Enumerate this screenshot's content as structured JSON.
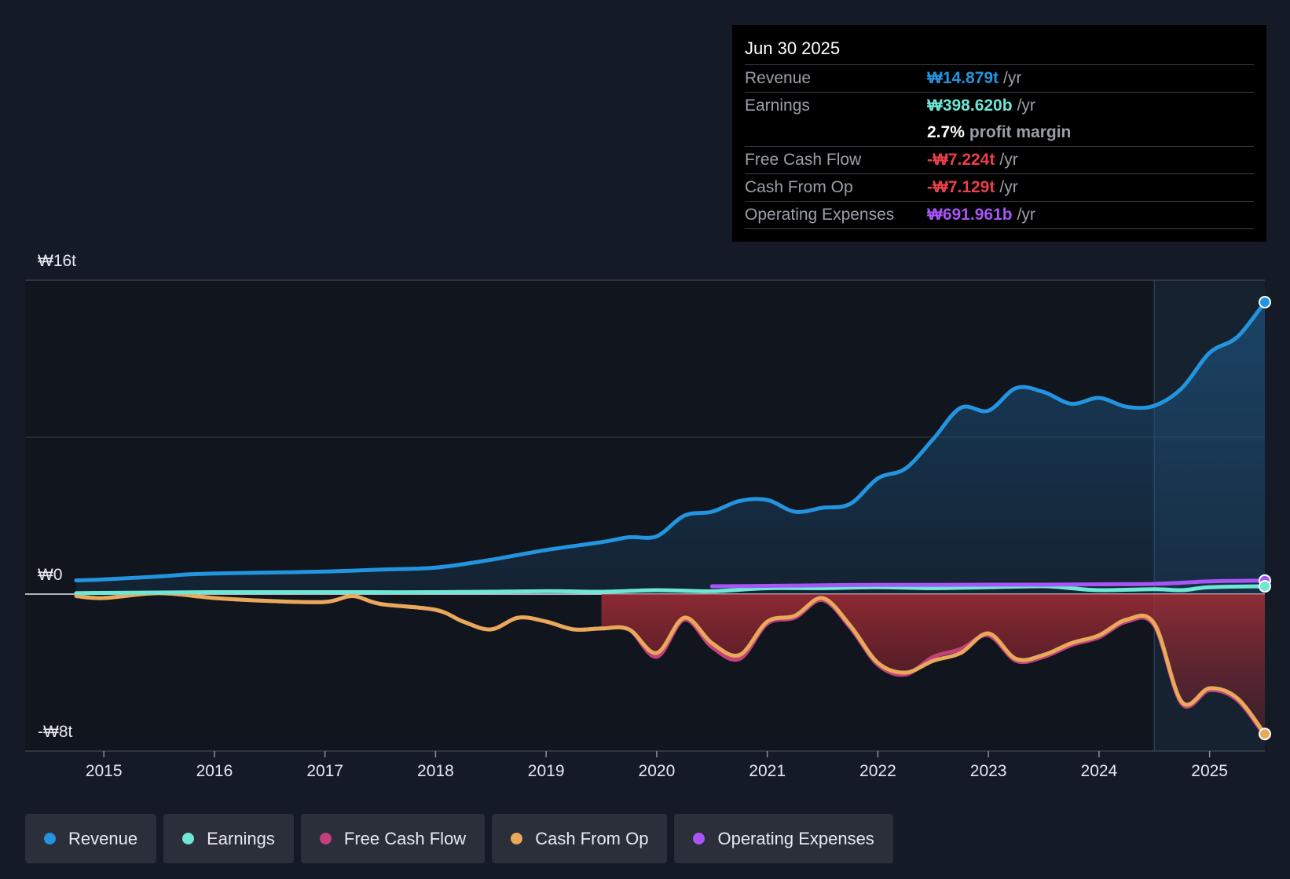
{
  "tooltip": {
    "date": "Jun 30 2025",
    "rows": [
      {
        "label": "Revenue",
        "value": "₩14.879t",
        "unit": "/yr",
        "color": "#2394df"
      },
      {
        "label": "Earnings",
        "value": "₩398.620b",
        "unit": "/yr",
        "color": "#6ee7d6"
      },
      {
        "label": "",
        "value": "2.7%",
        "unit": "profit margin",
        "color": "#ffffff"
      },
      {
        "label": "Free Cash Flow",
        "value": "-₩7.224t",
        "unit": "/yr",
        "color": "#e8404a"
      },
      {
        "label": "Cash From Op",
        "value": "-₩7.129t",
        "unit": "/yr",
        "color": "#e8404a"
      },
      {
        "label": "Operating Expenses",
        "value": "₩691.961b",
        "unit": "/yr",
        "color": "#a855f7"
      }
    ]
  },
  "legend": [
    {
      "label": "Revenue",
      "color": "#2394df"
    },
    {
      "label": "Earnings",
      "color": "#6ee7d6"
    },
    {
      "label": "Free Cash Flow",
      "color": "#c2417a"
    },
    {
      "label": "Cash From Op",
      "color": "#e8a95b"
    },
    {
      "label": "Operating Expenses",
      "color": "#a855f7"
    }
  ],
  "chart_data": {
    "type": "line",
    "title": "",
    "currency_note": "KRW",
    "y_labels": [
      "₩16t",
      "₩0",
      "-₩8t"
    ],
    "ylim": [
      -8,
      16
    ],
    "xlim": [
      2014.75,
      2025.5
    ],
    "forecast_start": 2024.5,
    "x_ticks": [
      2015,
      2016,
      2017,
      2018,
      2019,
      2020,
      2021,
      2022,
      2023,
      2024,
      2025
    ],
    "series": [
      {
        "name": "Revenue",
        "color": "#2394df",
        "points": [
          [
            2014.75,
            0.7
          ],
          [
            2015,
            0.75
          ],
          [
            2015.5,
            0.9
          ],
          [
            2015.75,
            1.0
          ],
          [
            2016,
            1.05
          ],
          [
            2016.5,
            1.1
          ],
          [
            2017,
            1.15
          ],
          [
            2017.5,
            1.25
          ],
          [
            2018,
            1.35
          ],
          [
            2018.5,
            1.75
          ],
          [
            2019,
            2.25
          ],
          [
            2019.5,
            2.65
          ],
          [
            2019.75,
            2.9
          ],
          [
            2020,
            2.95
          ],
          [
            2020.25,
            4.0
          ],
          [
            2020.5,
            4.2
          ],
          [
            2020.75,
            4.75
          ],
          [
            2021,
            4.8
          ],
          [
            2021.25,
            4.2
          ],
          [
            2021.5,
            4.4
          ],
          [
            2021.75,
            4.6
          ],
          [
            2022,
            5.9
          ],
          [
            2022.25,
            6.4
          ],
          [
            2022.5,
            7.9
          ],
          [
            2022.75,
            9.5
          ],
          [
            2023,
            9.35
          ],
          [
            2023.25,
            10.5
          ],
          [
            2023.5,
            10.3
          ],
          [
            2023.75,
            9.7
          ],
          [
            2024,
            10.0
          ],
          [
            2024.25,
            9.55
          ],
          [
            2024.5,
            9.6
          ],
          [
            2024.75,
            10.5
          ],
          [
            2025,
            12.3
          ],
          [
            2025.25,
            13.1
          ],
          [
            2025.5,
            14.879
          ]
        ]
      },
      {
        "name": "Earnings",
        "color": "#6ee7d6",
        "points": [
          [
            2014.75,
            0.05
          ],
          [
            2016,
            0.1
          ],
          [
            2017,
            0.1
          ],
          [
            2018,
            0.1
          ],
          [
            2019,
            0.15
          ],
          [
            2019.5,
            0.12
          ],
          [
            2020,
            0.2
          ],
          [
            2020.5,
            0.15
          ],
          [
            2021,
            0.3
          ],
          [
            2021.5,
            0.3
          ],
          [
            2022,
            0.35
          ],
          [
            2022.5,
            0.3
          ],
          [
            2023,
            0.35
          ],
          [
            2023.5,
            0.4
          ],
          [
            2023.75,
            0.3
          ],
          [
            2024,
            0.2
          ],
          [
            2024.5,
            0.25
          ],
          [
            2024.75,
            0.2
          ],
          [
            2025,
            0.35
          ],
          [
            2025.5,
            0.3986
          ]
        ]
      },
      {
        "name": "Free Cash Flow",
        "color": "#c2417a",
        "points": [
          [
            2014.75,
            -0.1
          ],
          [
            2015,
            -0.2
          ],
          [
            2015.5,
            0.05
          ],
          [
            2016,
            -0.2
          ],
          [
            2016.5,
            -0.35
          ],
          [
            2017,
            -0.4
          ],
          [
            2017.25,
            -0.1
          ],
          [
            2017.5,
            -0.5
          ],
          [
            2018,
            -0.8
          ],
          [
            2018.25,
            -1.4
          ],
          [
            2018.5,
            -1.8
          ],
          [
            2018.75,
            -1.2
          ],
          [
            2019,
            -1.4
          ],
          [
            2019.25,
            -1.8
          ],
          [
            2019.5,
            -1.75
          ],
          [
            2019.75,
            -1.8
          ],
          [
            2020,
            -3.2
          ],
          [
            2020.25,
            -1.3
          ],
          [
            2020.5,
            -2.7
          ],
          [
            2020.75,
            -3.3
          ],
          [
            2021,
            -1.5
          ],
          [
            2021.25,
            -1.2
          ],
          [
            2021.5,
            -0.3
          ],
          [
            2021.75,
            -1.7
          ],
          [
            2022,
            -3.6
          ],
          [
            2022.25,
            -4.1
          ],
          [
            2022.5,
            -3.2
          ],
          [
            2022.75,
            -2.8
          ],
          [
            2023,
            -2.1
          ],
          [
            2023.25,
            -3.4
          ],
          [
            2023.5,
            -3.2
          ],
          [
            2023.75,
            -2.6
          ],
          [
            2024,
            -2.2
          ],
          [
            2024.25,
            -1.4
          ],
          [
            2024.5,
            -1.6
          ],
          [
            2024.75,
            -5.6
          ],
          [
            2025,
            -4.9
          ],
          [
            2025.25,
            -5.4
          ],
          [
            2025.5,
            -7.224
          ]
        ]
      },
      {
        "name": "Cash From Op",
        "color": "#e8a95b",
        "points": [
          [
            2014.75,
            -0.1
          ],
          [
            2015,
            -0.2
          ],
          [
            2015.5,
            0.05
          ],
          [
            2016,
            -0.2
          ],
          [
            2016.5,
            -0.35
          ],
          [
            2017,
            -0.4
          ],
          [
            2017.25,
            -0.1
          ],
          [
            2017.5,
            -0.5
          ],
          [
            2018,
            -0.8
          ],
          [
            2018.25,
            -1.4
          ],
          [
            2018.5,
            -1.8
          ],
          [
            2018.75,
            -1.2
          ],
          [
            2019,
            -1.4
          ],
          [
            2019.25,
            -1.8
          ],
          [
            2019.5,
            -1.75
          ],
          [
            2019.75,
            -1.8
          ],
          [
            2020,
            -3.0
          ],
          [
            2020.25,
            -1.2
          ],
          [
            2020.5,
            -2.5
          ],
          [
            2020.75,
            -3.1
          ],
          [
            2021,
            -1.4
          ],
          [
            2021.25,
            -1.1
          ],
          [
            2021.5,
            -0.2
          ],
          [
            2021.75,
            -1.6
          ],
          [
            2022,
            -3.5
          ],
          [
            2022.25,
            -4.0
          ],
          [
            2022.5,
            -3.4
          ],
          [
            2022.75,
            -3.0
          ],
          [
            2023,
            -2.0
          ],
          [
            2023.25,
            -3.3
          ],
          [
            2023.5,
            -3.1
          ],
          [
            2023.75,
            -2.5
          ],
          [
            2024,
            -2.1
          ],
          [
            2024.25,
            -1.3
          ],
          [
            2024.5,
            -1.5
          ],
          [
            2024.75,
            -5.5
          ],
          [
            2025,
            -4.8
          ],
          [
            2025.25,
            -5.3
          ],
          [
            2025.5,
            -7.129
          ]
        ]
      },
      {
        "name": "Operating Expenses",
        "color": "#a855f7",
        "points": [
          [
            2020.5,
            0.4
          ],
          [
            2021,
            0.42
          ],
          [
            2021.5,
            0.45
          ],
          [
            2022,
            0.47
          ],
          [
            2022.5,
            0.47
          ],
          [
            2023,
            0.48
          ],
          [
            2023.5,
            0.48
          ],
          [
            2024,
            0.5
          ],
          [
            2024.5,
            0.52
          ],
          [
            2025,
            0.65
          ],
          [
            2025.5,
            0.692
          ]
        ]
      }
    ]
  }
}
